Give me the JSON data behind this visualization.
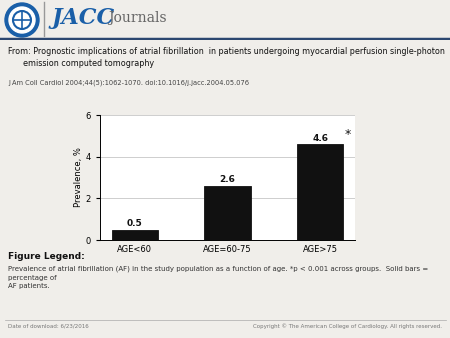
{
  "categories": [
    "AGE<60",
    "AGE=60-75",
    "AGE>75"
  ],
  "values": [
    0.5,
    2.6,
    4.6
  ],
  "bar_color": "#111111",
  "ylabel": "Prevalence, %",
  "ylim": [
    0,
    6
  ],
  "yticks": [
    0,
    2,
    4,
    6
  ],
  "bar_width": 0.5,
  "value_labels": [
    "0.5",
    "2.6",
    "4.6"
  ],
  "asterisk_label": "*",
  "title_line1": "From: Prognostic implications of atrial fibrillation  in patients undergoing myocardial perfusion single-photon",
  "title_line2": "      emission computed tomography",
  "journal_ref": "J Am Coll Cardiol 2004;44(5):1062-1070. doi:10.1016/j.jacc.2004.05.076",
  "figure_legend_title": "Figure Legend:",
  "figure_legend_text": "Prevalence of atrial fibrillation (AF) in the study population as a function of age. *p < 0.001 across groups.  Solid bars = percentage of\nAF patients.",
  "footer_left": "Date of download: 6/23/2016",
  "footer_right": "Copyright © The American College of Cardiology. All rights reserved.",
  "header_bg": "#ffffff",
  "header_blue": "#1a5fa8",
  "header_line_blue": "#1a5fa8",
  "header_line_dark": "#2c4770",
  "bg_color": "#f0eeea"
}
